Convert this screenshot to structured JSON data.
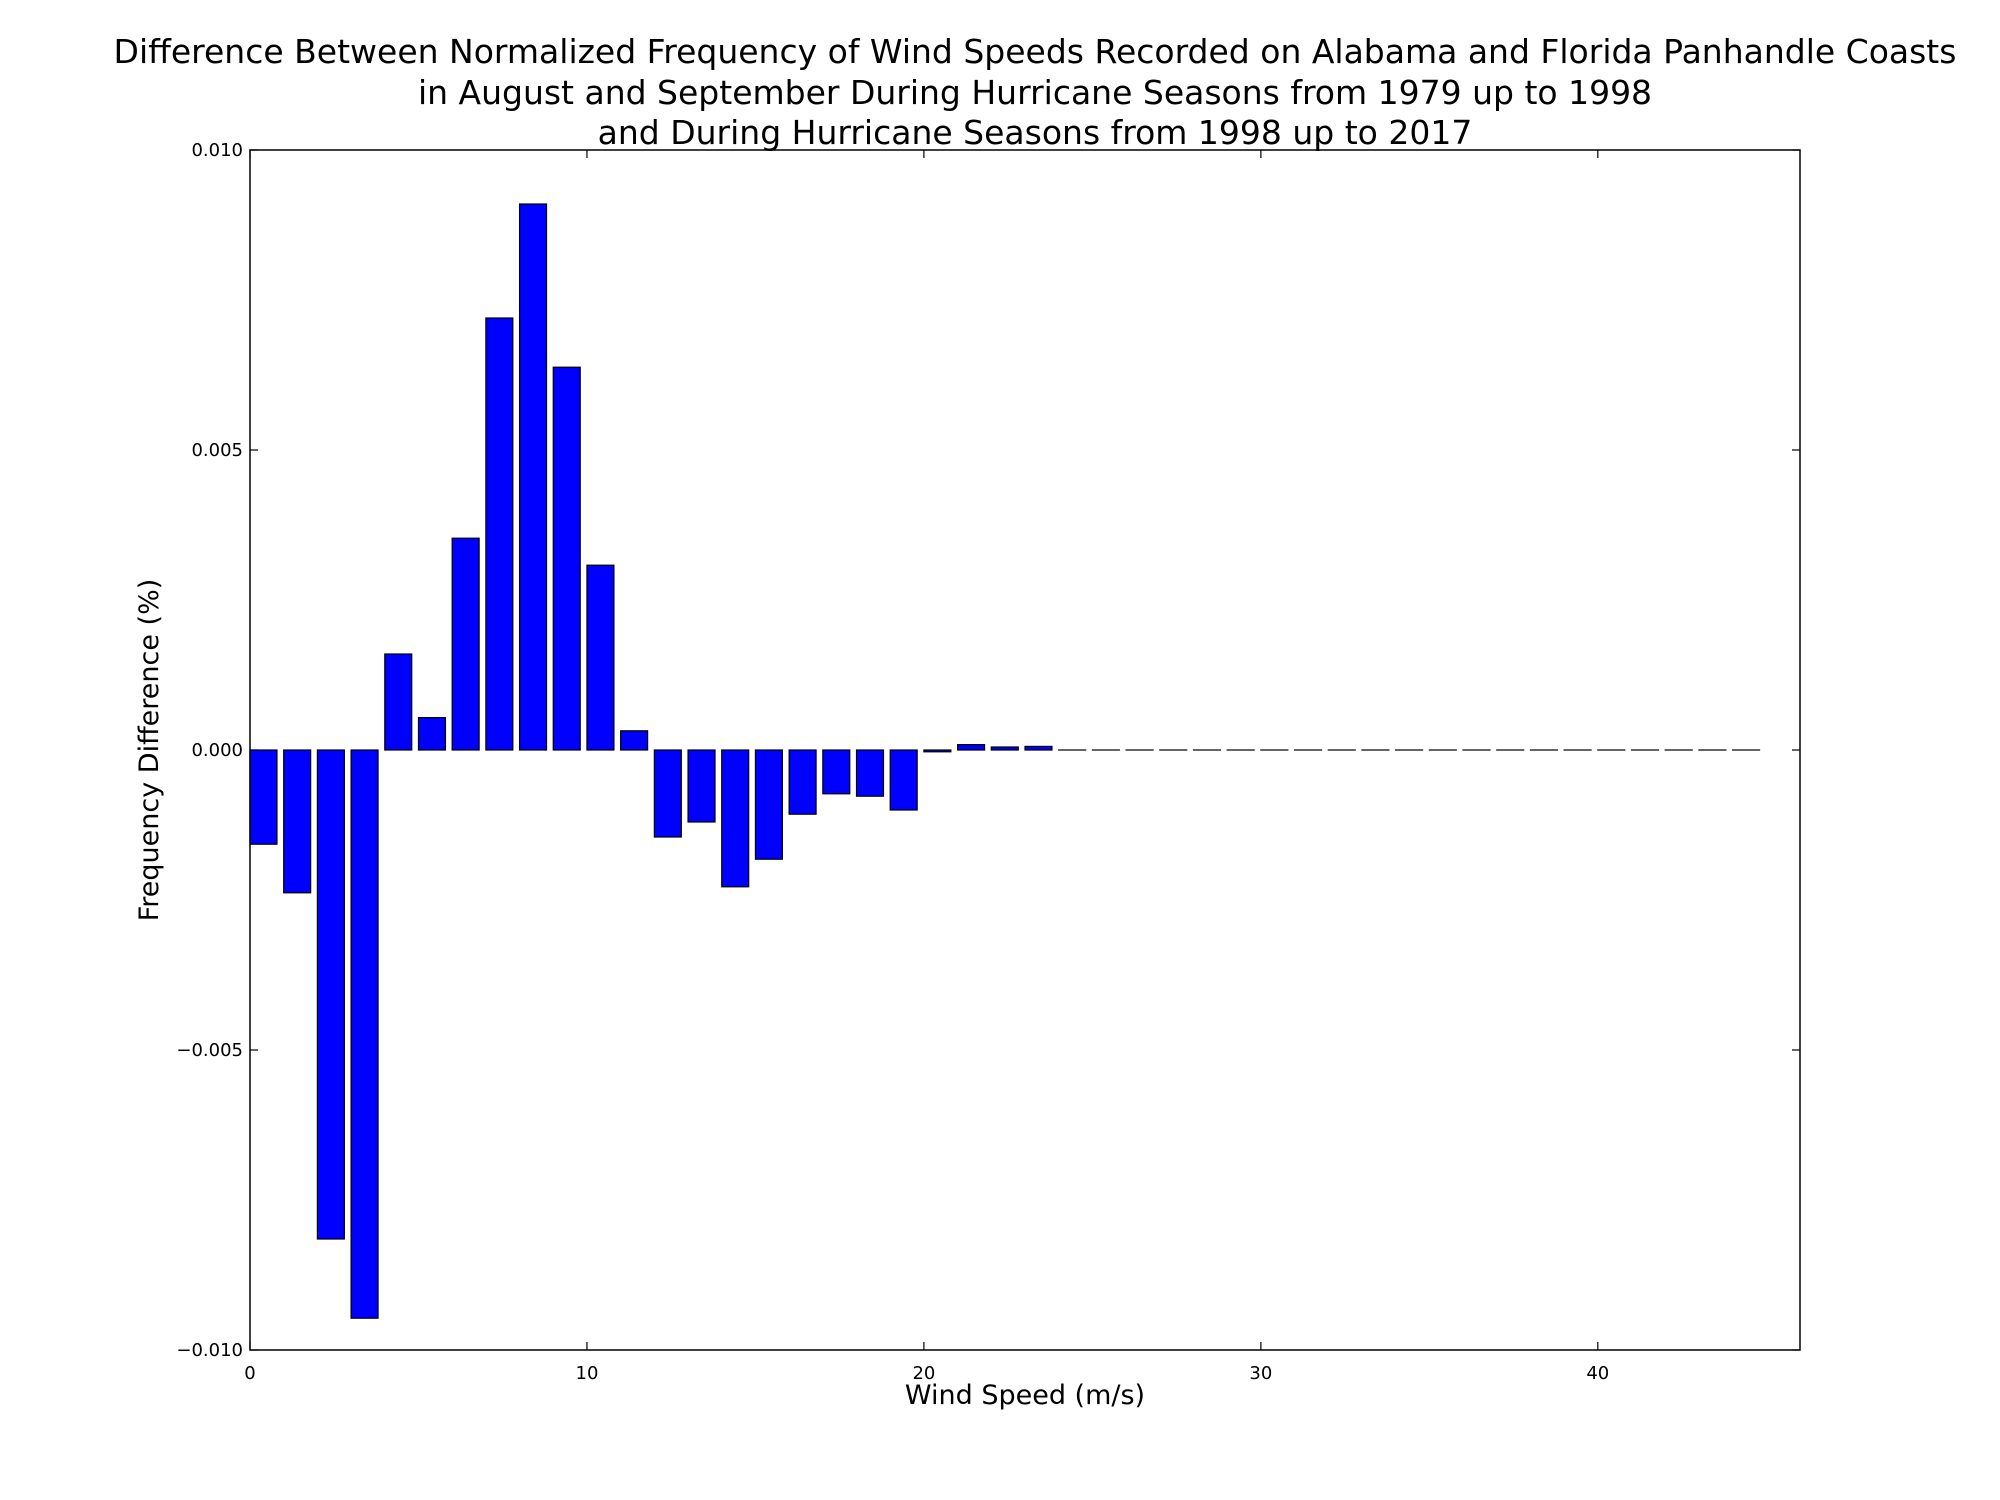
{
  "chart_data": {
    "type": "bar",
    "title_lines": [
      "Difference Between Normalized Frequency of Wind Speeds Recorded on Alabama and Florida Panhandle Coasts",
      "in August and September During Hurricane Seasons from 1979 up to 1998",
      "and During Hurricane Seasons from 1998 up to 2017"
    ],
    "xlabel": "Wind Speed (m/s)",
    "ylabel": "Frequency Difference (%)",
    "xlim": [
      0,
      46
    ],
    "ylim": [
      -0.01,
      0.01
    ],
    "xticks": [
      0,
      10,
      20,
      30,
      40
    ],
    "xtick_labels": [
      "0",
      "10",
      "20",
      "30",
      "40"
    ],
    "yticks": [
      -0.01,
      -0.005,
      0.0,
      0.005,
      0.01
    ],
    "ytick_labels": [
      "−0.010",
      "−0.005",
      "0.000",
      "0.005",
      "0.010"
    ],
    "bar_color": "#0000ff",
    "bar_edge_color": "#000000",
    "grid": false,
    "x": [
      0,
      1,
      2,
      3,
      4,
      5,
      6,
      7,
      8,
      9,
      10,
      11,
      12,
      13,
      14,
      15,
      16,
      17,
      18,
      19,
      20,
      21,
      22,
      23,
      24,
      25,
      26,
      27,
      28,
      29,
      30,
      31,
      32,
      33,
      34,
      35,
      36,
      37,
      38,
      39,
      40,
      41,
      42,
      43,
      44
    ],
    "values": [
      -0.00157,
      -0.00238,
      -0.00815,
      -0.00947,
      0.0016,
      0.00054,
      0.00353,
      0.0072,
      0.0091,
      0.00638,
      0.00308,
      0.00032,
      -0.00145,
      -0.0012,
      -0.00228,
      -0.00182,
      -0.00107,
      -0.00073,
      -0.00077,
      -0.001,
      -3e-05,
      9e-05,
      5e-05,
      6e-05,
      0,
      0,
      0,
      0,
      0,
      0,
      0,
      0,
      0,
      0,
      0,
      0,
      0,
      0,
      0,
      0,
      0,
      0,
      0,
      0,
      0
    ]
  }
}
